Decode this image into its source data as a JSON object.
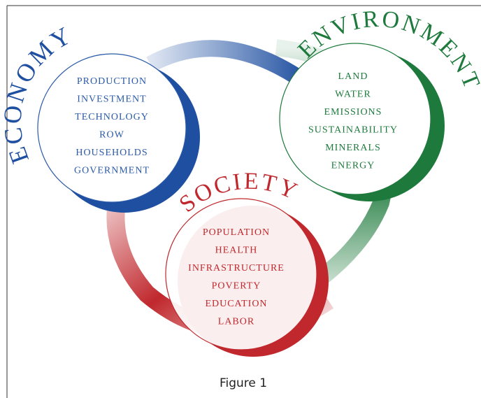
{
  "groups": [
    {
      "title": "ECONOMY",
      "items": [
        "PRODUCTION",
        "INVESTMENT",
        "TECHNOLOGY",
        "ROW",
        "HOUSEHOLDS",
        "GOVERNMENT"
      ]
    },
    {
      "title": "ENVIRONMENT",
      "items": [
        "LAND",
        "WATER",
        "EMISSIONS",
        "SUSTAINABILITY",
        "MINERALS",
        "ENERGY"
      ]
    },
    {
      "title": "SOCIETY",
      "items": [
        "POPULATION",
        "HEALTH",
        "INFRASTRUCTURE",
        "POVERTY",
        "EDUCATION",
        "LABOR"
      ]
    }
  ],
  "caption": "Figure 1"
}
